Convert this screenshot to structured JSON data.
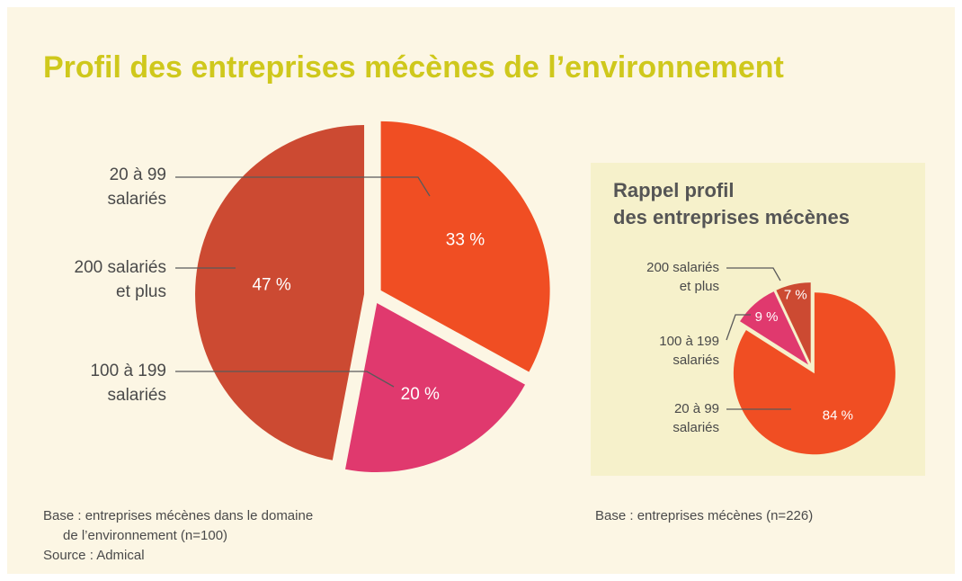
{
  "title": "Profil des entreprises mécènes de l’environnement",
  "chart_data": [
    {
      "type": "pie",
      "categories": [
        [
          "20 à 99",
          "salariés"
        ],
        [
          "100 à 199",
          "salariés"
        ],
        [
          "200 salariés",
          "et plus"
        ]
      ],
      "values": [
        33,
        20,
        47
      ],
      "value_labels": [
        "33 %",
        "20 %",
        "47 %"
      ],
      "colors": [
        "#f04e23",
        "#e0396e",
        "#cc4a32"
      ],
      "note": [
        "Base : entreprises mécènes dans le domaine",
        "de l’environnement (n=100)"
      ],
      "source": "Source : Admical"
    },
    {
      "type": "pie",
      "title": [
        "Rappel profil",
        "des entreprises mécènes"
      ],
      "categories": [
        [
          "20 à 99",
          "salariés"
        ],
        [
          "100 à 199",
          "salariés"
        ],
        [
          "200 salariés",
          "et plus"
        ]
      ],
      "values": [
        84,
        9,
        7
      ],
      "value_labels": [
        "84 %",
        "9 %",
        "7 %"
      ],
      "colors": [
        "#f04e23",
        "#e0396e",
        "#cc4a32"
      ],
      "note": [
        "Base : entreprises mécènes (n=226)"
      ]
    }
  ]
}
